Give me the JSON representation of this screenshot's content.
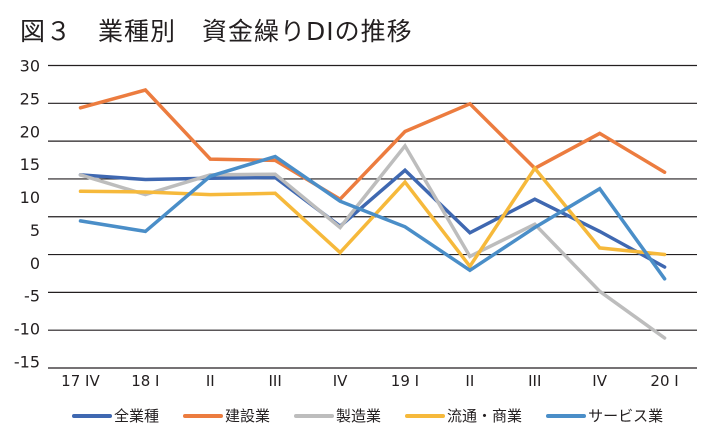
{
  "title": "図３　業種別　資金繰りDIの推移",
  "chart_data": {
    "type": "line",
    "title": "図３　業種別　資金繰りDIの推移",
    "xlabel": "",
    "ylabel": "",
    "categories": [
      "17 IV",
      "18 I",
      "II",
      "III",
      "IV",
      "19 I",
      "II",
      "III",
      "IV",
      "20 I"
    ],
    "y_ticks": [
      30,
      25,
      20,
      15,
      10,
      5,
      0,
      -5,
      -10,
      -15
    ],
    "ylim": [
      -15,
      30
    ],
    "grid": true,
    "legend_position": "bottom",
    "series": [
      {
        "name": "全業種",
        "color": "#3f68b1",
        "values": [
          13.6,
          12.9,
          13.1,
          13.2,
          5.8,
          14.3,
          4.8,
          9.9,
          5.0,
          -0.4
        ]
      },
      {
        "name": "建設業",
        "color": "#ec7c3f",
        "values": [
          23.8,
          26.5,
          16.0,
          15.8,
          9.9,
          20.2,
          24.4,
          14.6,
          19.9,
          14.0
        ]
      },
      {
        "name": "製造業",
        "color": "#bdbdbd",
        "values": [
          13.6,
          10.6,
          13.6,
          13.7,
          5.6,
          18.0,
          1.2,
          6.1,
          -4.1,
          -11.2
        ]
      },
      {
        "name": "流通・商業",
        "color": "#f6b93b",
        "values": [
          11.1,
          11.0,
          10.6,
          10.8,
          1.8,
          12.5,
          -0.3,
          14.6,
          2.5,
          1.5
        ]
      },
      {
        "name": "サービス業",
        "color": "#4a8ec8",
        "values": [
          6.6,
          5.0,
          13.4,
          16.4,
          9.6,
          5.7,
          -0.9,
          5.6,
          11.5,
          -2.2
        ]
      }
    ]
  }
}
